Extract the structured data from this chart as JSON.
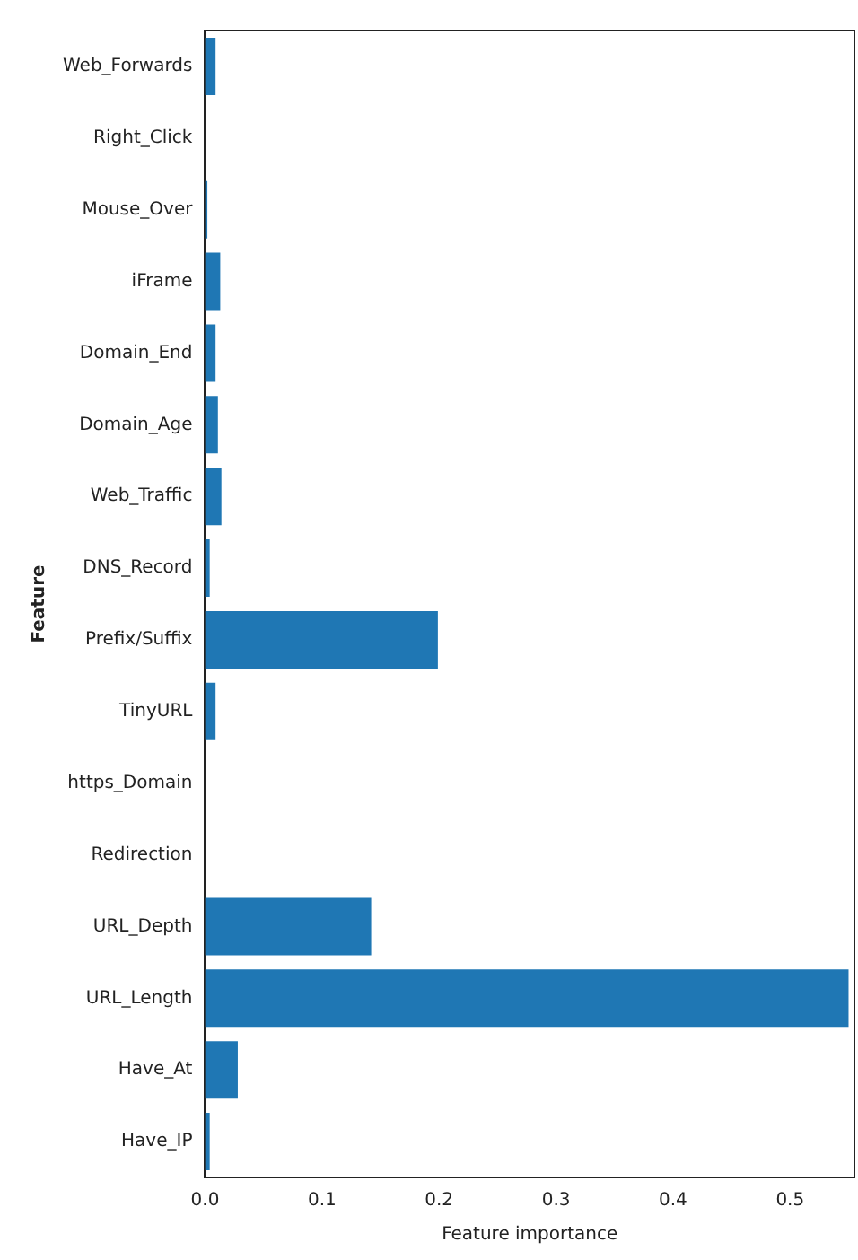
{
  "chart_data": {
    "type": "bar",
    "orientation": "horizontal",
    "xlabel": "Feature importance",
    "ylabel": "Feature",
    "categories": [
      "Web_Forwards",
      "Right_Click",
      "Mouse_Over",
      "iFrame",
      "Domain_End",
      "Domain_Age",
      "Web_Traffic",
      "DNS_Record",
      "Prefix/Suffix",
      "TinyURL",
      "https_Domain",
      "Redirection",
      "URL_Depth",
      "URL_Length",
      "Have_At",
      "Have_IP"
    ],
    "values": [
      0.009,
      0,
      0.002,
      0.013,
      0.009,
      0.011,
      0.014,
      0.004,
      0.199,
      0.009,
      0,
      0,
      0.142,
      0.55,
      0.028,
      0.004
    ],
    "color": "#1f77b4",
    "xlim": [
      0,
      0.555
    ],
    "xticks": [
      {
        "value": 0,
        "label": "0.0"
      },
      0.1,
      0.2,
      0.3,
      0.4,
      0.5
    ],
    "grid": false,
    "legend": false
  }
}
